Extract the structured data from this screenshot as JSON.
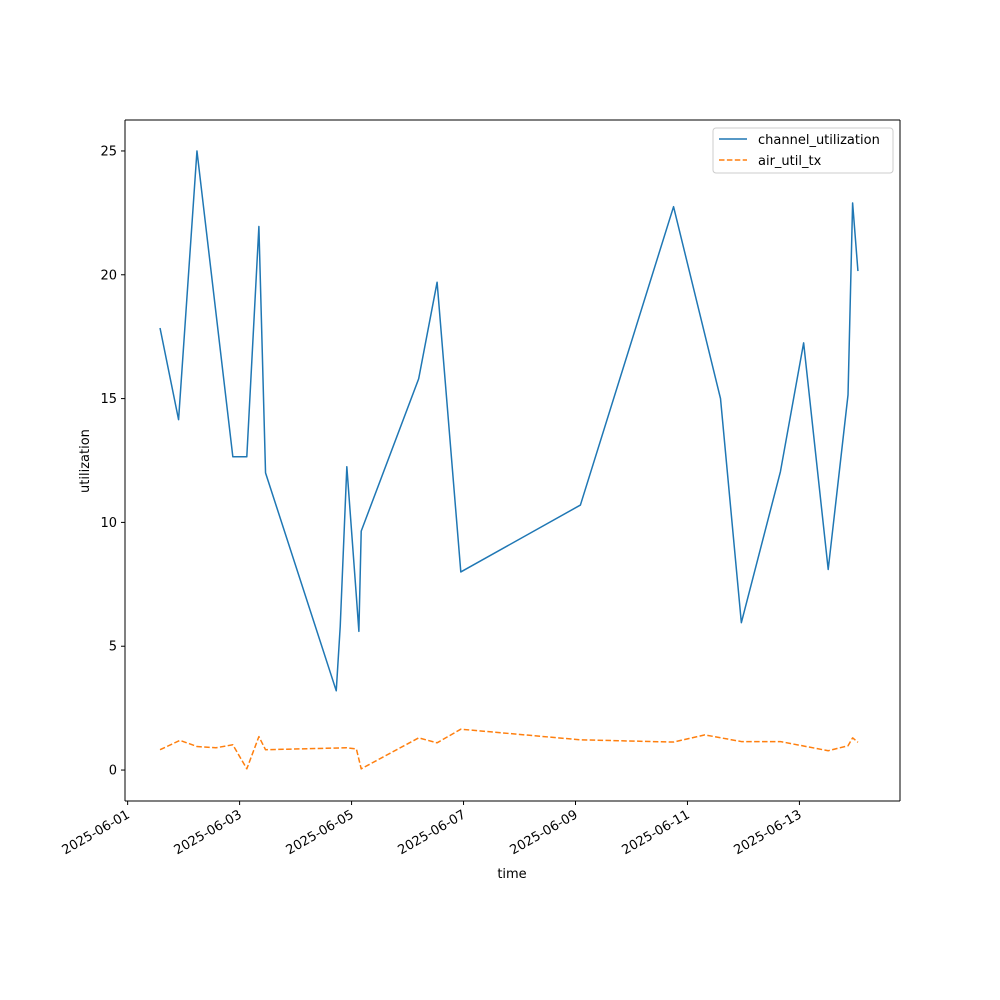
{
  "chart_data": {
    "type": "line",
    "title": "",
    "xlabel": "time",
    "ylabel": "utilization",
    "x_axis_type": "date",
    "xlim": [
      "2025-06-00T22:52",
      "2025-06-14T19:07"
    ],
    "ylim": [
      -1.25,
      26.25
    ],
    "x_ticks": [
      "2025-06-01",
      "2025-06-03",
      "2025-06-05",
      "2025-06-07",
      "2025-06-09",
      "2025-06-11",
      "2025-06-13"
    ],
    "y_ticks": [
      0,
      5,
      10,
      15,
      20,
      25
    ],
    "grid": false,
    "legend_position": "upper right",
    "series": [
      {
        "name": "channel_utilization",
        "color": "#1f77b4",
        "line_style": "solid",
        "points": [
          {
            "x": "2025-06-01T13:53",
            "y": 17.85
          },
          {
            "x": "2025-06-01T21:50",
            "y": 14.15
          },
          {
            "x": "2025-06-02T05:43",
            "y": 25.0
          },
          {
            "x": "2025-06-02T21:06",
            "y": 12.65
          },
          {
            "x": "2025-06-03T03:05",
            "y": 12.65
          },
          {
            "x": "2025-06-03T08:16",
            "y": 21.95
          },
          {
            "x": "2025-06-03T11:07",
            "y": 12.0
          },
          {
            "x": "2025-06-04T17:26",
            "y": 3.2
          },
          {
            "x": "2025-06-04T19:08",
            "y": 5.8
          },
          {
            "x": "2025-06-04T21:58",
            "y": 12.25
          },
          {
            "x": "2025-06-05T02:04",
            "y": 7.0
          },
          {
            "x": "2025-06-05T03:08",
            "y": 5.6
          },
          {
            "x": "2025-06-05T04:08",
            "y": 9.65
          },
          {
            "x": "2025-06-06T04:46",
            "y": 15.8
          },
          {
            "x": "2025-06-06T12:40",
            "y": 19.7
          },
          {
            "x": "2025-06-06T22:50",
            "y": 8.0
          },
          {
            "x": "2025-06-09T02:06",
            "y": 10.7
          },
          {
            "x": "2025-06-10T18:02",
            "y": 22.75
          },
          {
            "x": "2025-06-11T14:10",
            "y": 15.0
          },
          {
            "x": "2025-06-11T23:06",
            "y": 5.95
          },
          {
            "x": "2025-06-12T15:51",
            "y": 12.05
          },
          {
            "x": "2025-06-13T01:48",
            "y": 17.25
          },
          {
            "x": "2025-06-13T12:20",
            "y": 8.1
          },
          {
            "x": "2025-06-13T20:50",
            "y": 15.15
          },
          {
            "x": "2025-06-13T22:48",
            "y": 22.9
          },
          {
            "x": "2025-06-14T01:05",
            "y": 20.15
          }
        ]
      },
      {
        "name": "air_util_tx",
        "color": "#ff7f0e",
        "line_style": "dashed",
        "points": [
          {
            "x": "2025-06-01T13:53",
            "y": 0.82
          },
          {
            "x": "2025-06-01T22:26",
            "y": 1.2
          },
          {
            "x": "2025-06-02T05:43",
            "y": 0.95
          },
          {
            "x": "2025-06-02T13:53",
            "y": 0.9
          },
          {
            "x": "2025-06-02T21:06",
            "y": 1.02
          },
          {
            "x": "2025-06-03T03:05",
            "y": 0.05
          },
          {
            "x": "2025-06-03T08:16",
            "y": 1.35
          },
          {
            "x": "2025-06-03T11:07",
            "y": 0.82
          },
          {
            "x": "2025-06-04T21:58",
            "y": 0.9
          },
          {
            "x": "2025-06-05T02:04",
            "y": 0.85
          },
          {
            "x": "2025-06-05T04:08",
            "y": 0.05
          },
          {
            "x": "2025-06-06T04:46",
            "y": 1.3
          },
          {
            "x": "2025-06-06T12:40",
            "y": 1.1
          },
          {
            "x": "2025-06-06T22:50",
            "y": 1.65
          },
          {
            "x": "2025-06-09T02:06",
            "y": 1.22
          },
          {
            "x": "2025-06-10T18:02",
            "y": 1.13
          },
          {
            "x": "2025-06-11T07:27",
            "y": 1.42
          },
          {
            "x": "2025-06-11T23:06",
            "y": 1.15
          },
          {
            "x": "2025-06-12T15:51",
            "y": 1.15
          },
          {
            "x": "2025-06-13T12:20",
            "y": 0.78
          },
          {
            "x": "2025-06-13T20:50",
            "y": 0.98
          },
          {
            "x": "2025-06-13T22:48",
            "y": 1.3
          },
          {
            "x": "2025-06-14T01:05",
            "y": 1.12
          }
        ]
      }
    ]
  }
}
